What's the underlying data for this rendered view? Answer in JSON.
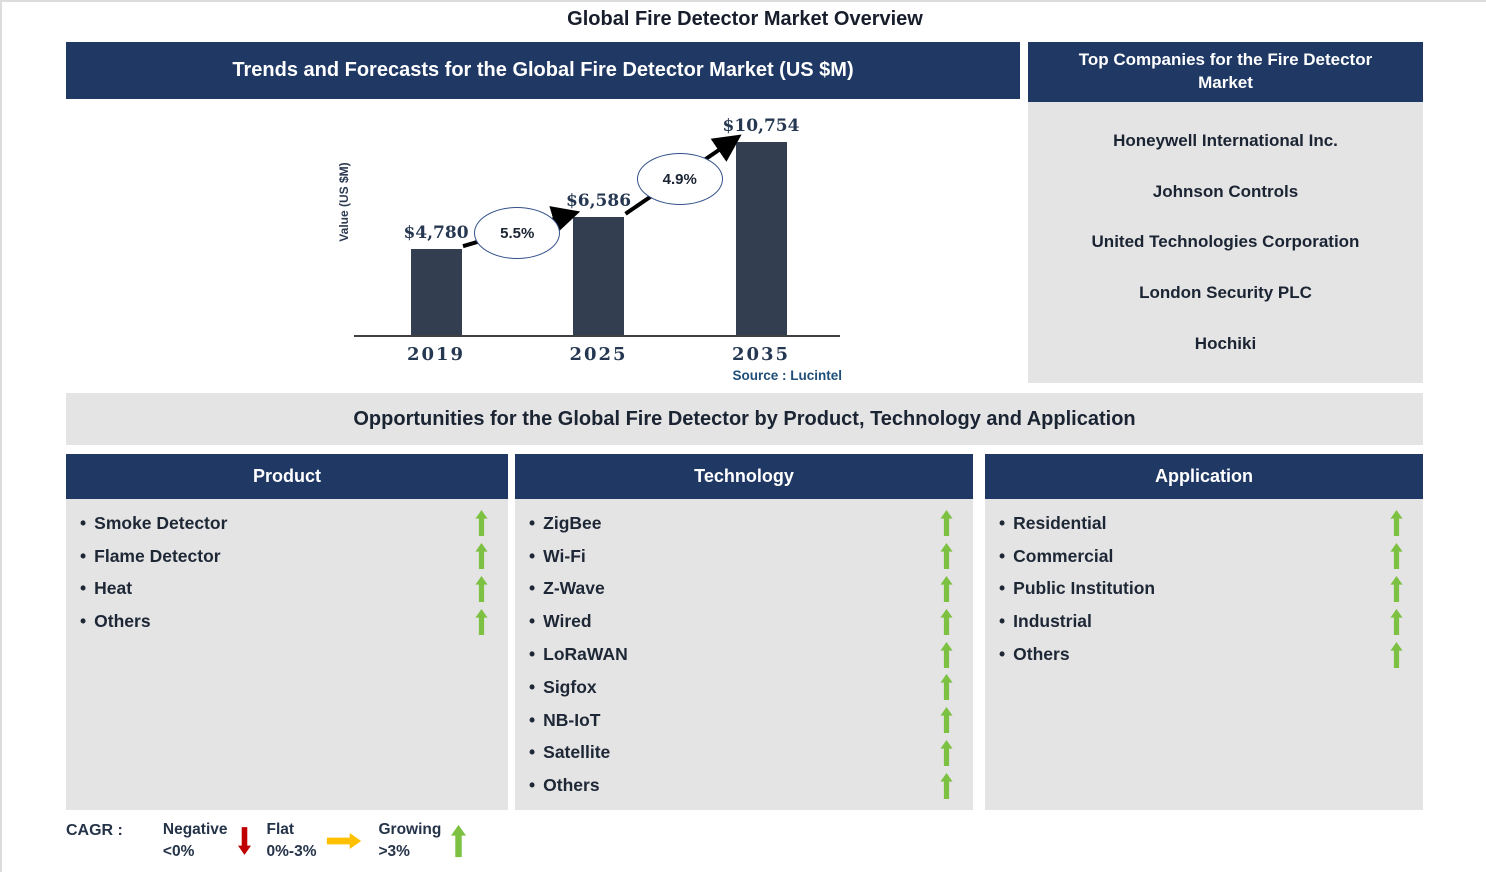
{
  "page_title": "Global Fire Detector Market Overview",
  "trends_panel": {
    "header": "Trends and Forecasts for the Global Fire Detector Market (US $M)"
  },
  "chart_data": {
    "type": "bar",
    "title": "Trends and Forecasts for the Global Fire Detector Market (US $M)",
    "categories": [
      "2019",
      "2025",
      "2035"
    ],
    "values": [
      4780,
      6586,
      10754
    ],
    "value_labels": [
      "$4,780",
      "$6,586",
      "$10,754"
    ],
    "growth_annotations": [
      {
        "from": "2019",
        "to": "2025",
        "label": "5.5%"
      },
      {
        "from": "2025",
        "to": "2035",
        "label": "4.9%"
      }
    ],
    "xlabel": "",
    "ylabel": "Value (US $M)",
    "source": "Source : Lucintel",
    "bar_color": "#333F50",
    "grid": false,
    "legend": false
  },
  "top_companies": {
    "header": "Top Companies for the Fire Detector Market",
    "companies": [
      "Honeywell International Inc.",
      "Johnson Controls",
      "United Technologies Corporation",
      "London Security PLC",
      "Hochiki"
    ]
  },
  "opportunities": {
    "header": "Opportunities for the Global Fire Detector by Product, Technology and Application",
    "columns": [
      {
        "title": "Product",
        "items": [
          {
            "label": "Smoke Detector",
            "trend": "growing"
          },
          {
            "label": "Flame Detector",
            "trend": "growing"
          },
          {
            "label": "Heat",
            "trend": "growing"
          },
          {
            "label": "Others",
            "trend": "growing"
          }
        ]
      },
      {
        "title": "Technology",
        "items": [
          {
            "label": "ZigBee",
            "trend": "growing"
          },
          {
            "label": "Wi-Fi",
            "trend": "growing"
          },
          {
            "label": "Z-Wave",
            "trend": "growing"
          },
          {
            "label": "Wired",
            "trend": "growing"
          },
          {
            "label": "LoRaWAN",
            "trend": "growing"
          },
          {
            "label": "Sigfox",
            "trend": "growing"
          },
          {
            "label": "NB-IoT",
            "trend": "growing"
          },
          {
            "label": "Satellite",
            "trend": "growing"
          },
          {
            "label": "Others",
            "trend": "growing"
          }
        ]
      },
      {
        "title": "Application",
        "items": [
          {
            "label": "Residential",
            "trend": "growing"
          },
          {
            "label": "Commercial",
            "trend": "growing"
          },
          {
            "label": "Public Institution",
            "trend": "growing"
          },
          {
            "label": "Industrial",
            "trend": "growing"
          },
          {
            "label": "Others",
            "trend": "growing"
          }
        ]
      }
    ]
  },
  "legend": {
    "title": "CAGR :",
    "items": [
      {
        "label": "Negative",
        "range": "<0%",
        "direction": "down",
        "color": "#C00000"
      },
      {
        "label": "Flat",
        "range": "0%-3%",
        "direction": "right",
        "color": "#FFC000"
      },
      {
        "label": "Growing",
        "range": ">3%",
        "direction": "up",
        "color": "#7DC142"
      }
    ]
  },
  "colors": {
    "navy_header": "#1F3864",
    "bar": "#333F50",
    "panel_gray": "#E4E4E4",
    "growing_green": "#7DC142",
    "negative_red": "#C00000",
    "flat_yellow": "#FFC000",
    "source_blue": "#1F4E79"
  }
}
